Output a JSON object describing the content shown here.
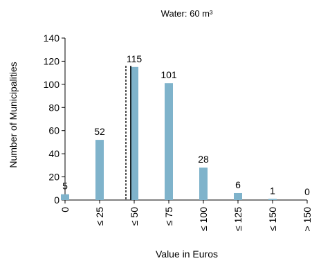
{
  "chart_data": {
    "type": "bar",
    "title": "Water: 60 m³",
    "xlabel": "Value in Euros",
    "ylabel": "Number of Municipalities",
    "ylim": [
      0,
      140
    ],
    "yticks": [
      0,
      20,
      40,
      60,
      80,
      100,
      120,
      140
    ],
    "categories": [
      "0",
      "≤ 25",
      "≤ 50",
      "≤ 75",
      "≤ 100",
      "≤ 125",
      "≤ 150",
      "> 150"
    ],
    "values": [
      5,
      52,
      115,
      101,
      28,
      6,
      1,
      0
    ],
    "bar_color": "#7fb3cb",
    "grid": false,
    "reference_lines": [
      {
        "style": "solid",
        "x_value": 47.5
      },
      {
        "style": "dashed",
        "x_value": 44
      }
    ]
  }
}
